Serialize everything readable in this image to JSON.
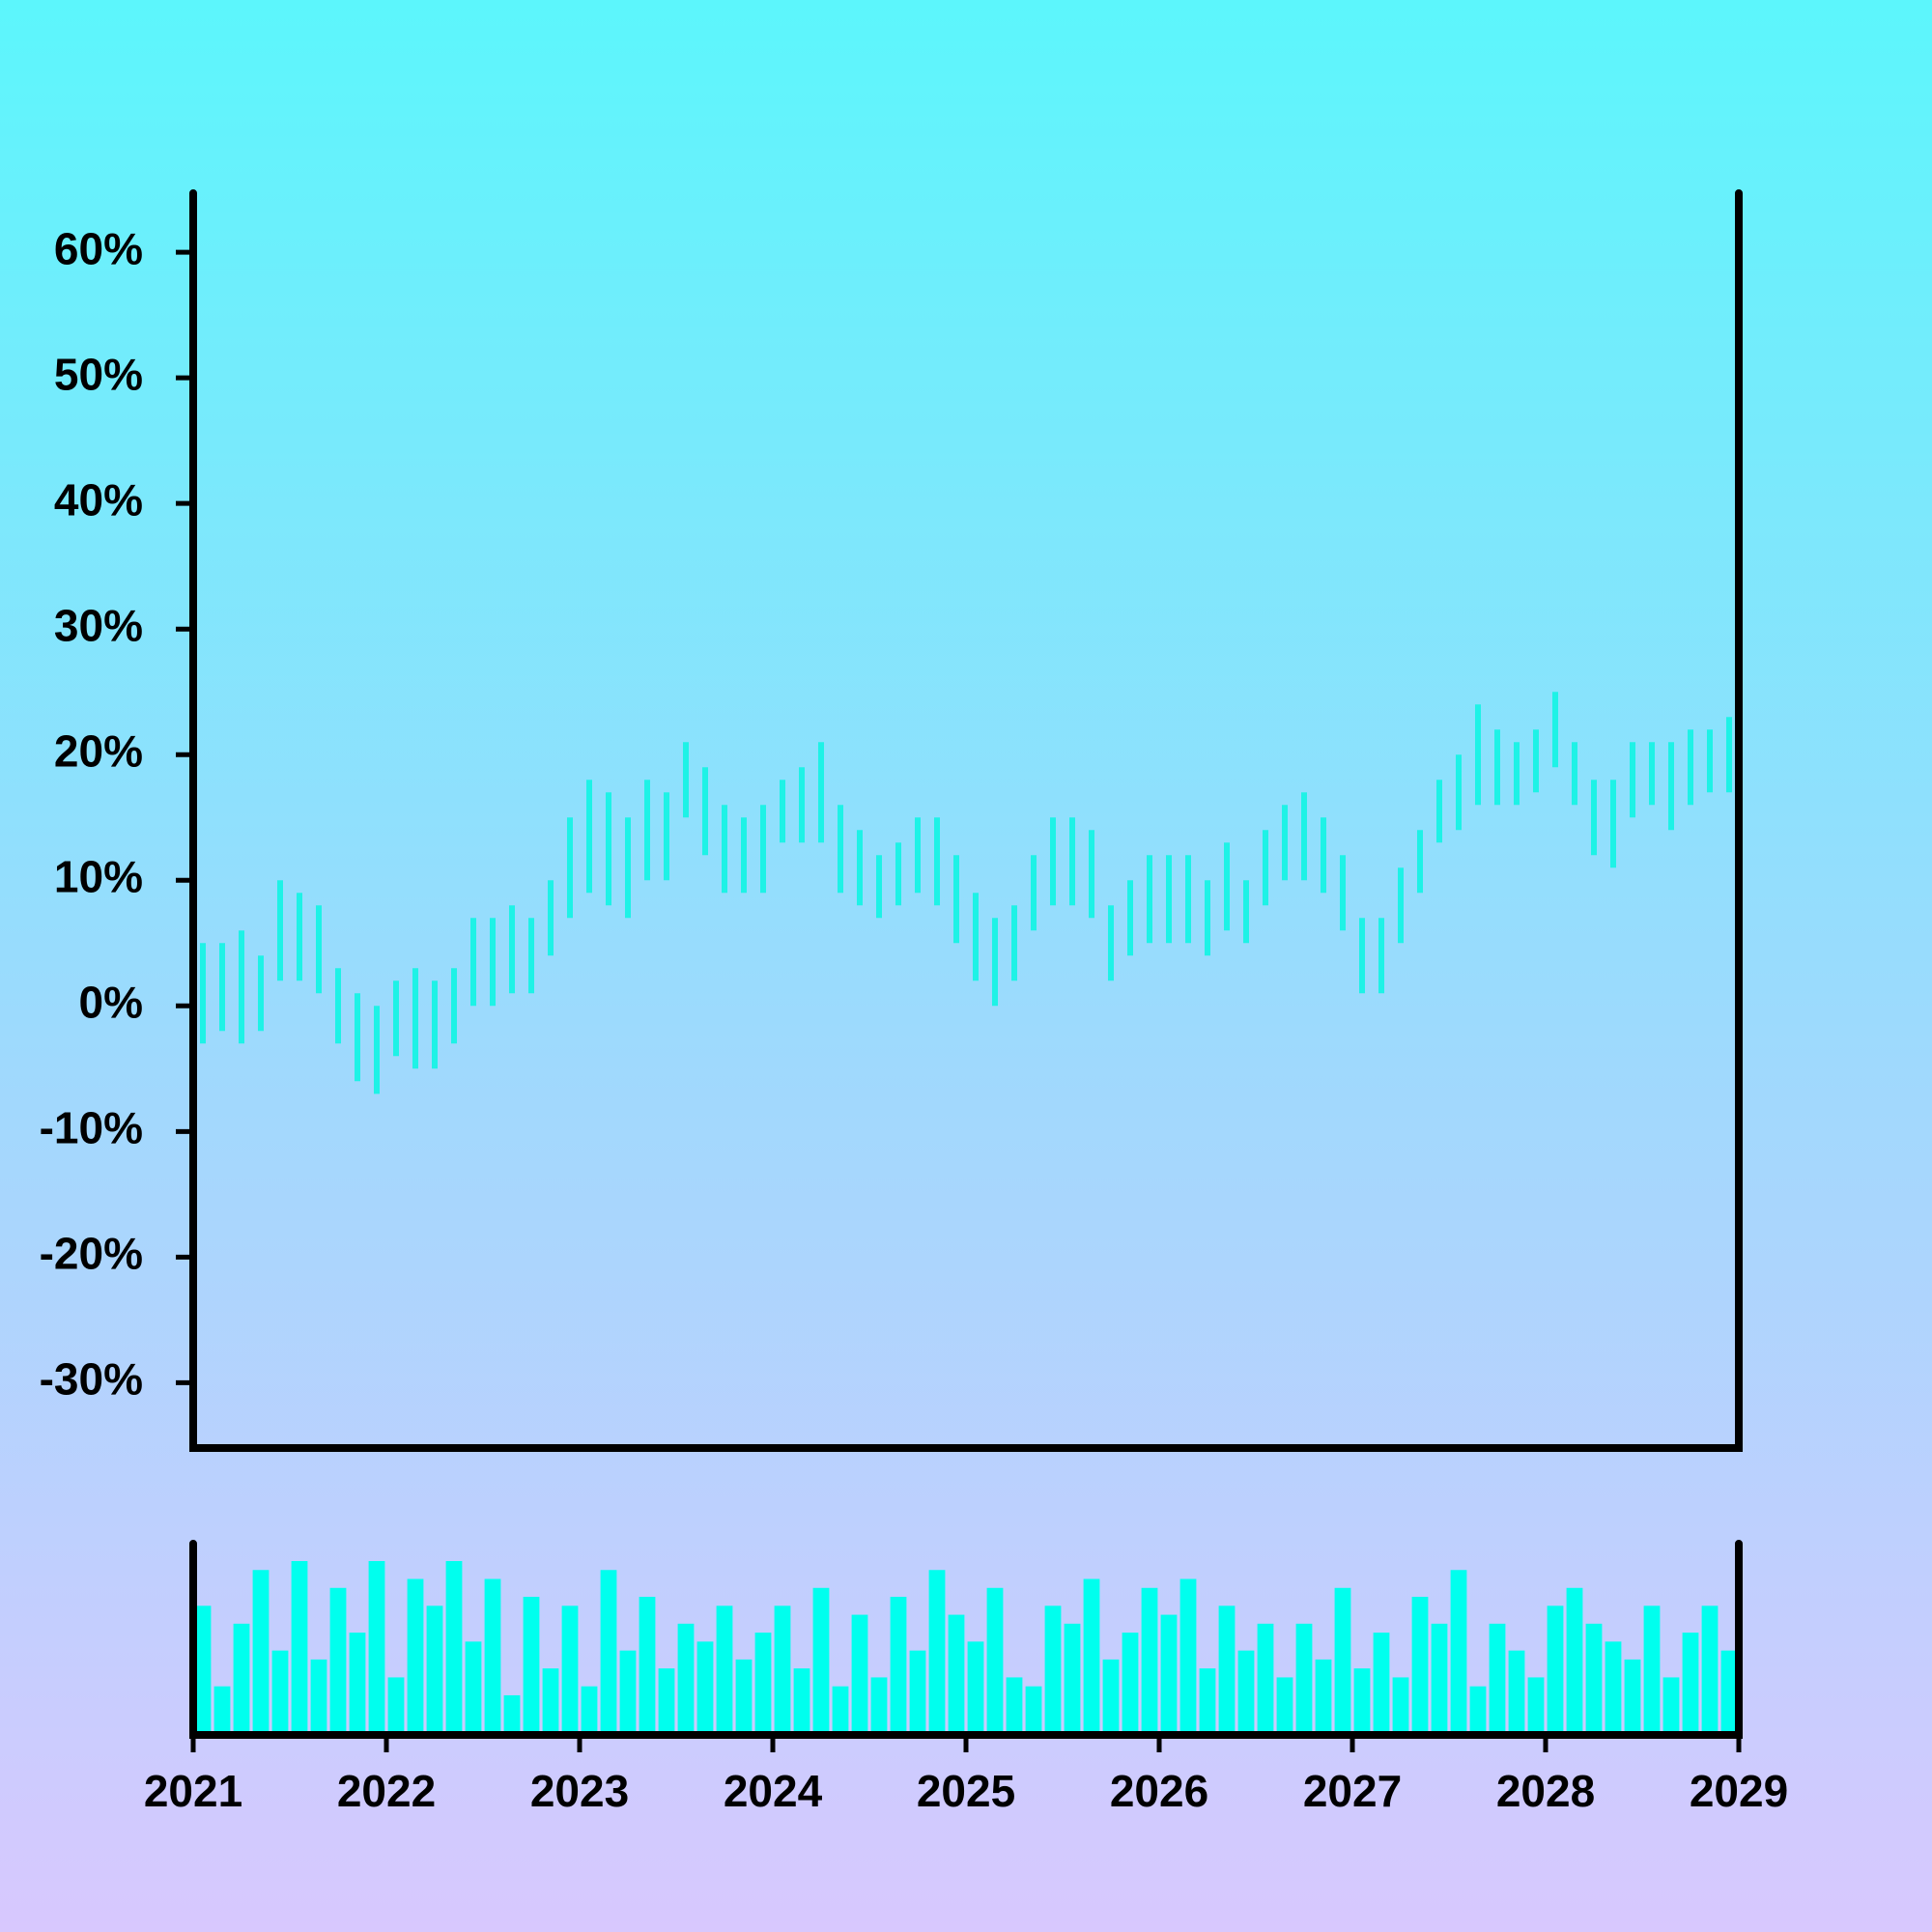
{
  "chart_data": {
    "type": "range",
    "x": [
      2021.05,
      2021.15,
      2021.25,
      2021.35,
      2021.45,
      2021.55,
      2021.65,
      2021.75,
      2021.85,
      2021.95,
      2022.05,
      2022.15,
      2022.25,
      2022.35,
      2022.45,
      2022.55,
      2022.65,
      2022.75,
      2022.85,
      2022.95,
      2023.05,
      2023.15,
      2023.25,
      2023.35,
      2023.45,
      2023.55,
      2023.65,
      2023.75,
      2023.85,
      2023.95,
      2024.05,
      2024.15,
      2024.25,
      2024.35,
      2024.45,
      2024.55,
      2024.65,
      2024.75,
      2024.85,
      2024.95,
      2025.05,
      2025.15,
      2025.25,
      2025.35,
      2025.45,
      2025.55,
      2025.65,
      2025.75,
      2025.85,
      2025.95,
      2026.05,
      2026.15,
      2026.25,
      2026.35,
      2026.45,
      2026.55,
      2026.65,
      2026.75,
      2026.85,
      2026.95,
      2027.05,
      2027.15,
      2027.25,
      2027.35,
      2027.45,
      2027.55,
      2027.65,
      2027.75,
      2027.85,
      2027.95,
      2028.05,
      2028.15,
      2028.25,
      2028.35,
      2028.45,
      2028.55,
      2028.65,
      2028.75,
      2028.85,
      2028.95
    ],
    "low": [
      -3,
      -2,
      -3,
      -2,
      2,
      2,
      1,
      -3,
      -6,
      -7,
      -4,
      -5,
      -5,
      -3,
      0,
      0,
      1,
      1,
      4,
      7,
      9,
      8,
      7,
      10,
      10,
      15,
      12,
      9,
      9,
      9,
      13,
      13,
      13,
      9,
      8,
      7,
      8,
      9,
      8,
      5,
      2,
      0,
      2,
      6,
      8,
      8,
      7,
      2,
      4,
      5,
      5,
      5,
      4,
      6,
      5,
      8,
      10,
      10,
      9,
      6,
      1,
      1,
      5,
      9,
      13,
      14,
      16,
      16,
      16,
      17,
      19,
      16,
      12,
      11,
      15,
      16,
      14,
      16,
      17,
      17
    ],
    "high": [
      5,
      5,
      6,
      4,
      10,
      9,
      8,
      3,
      1,
      0,
      2,
      3,
      2,
      3,
      7,
      7,
      8,
      7,
      10,
      15,
      18,
      17,
      15,
      18,
      17,
      21,
      19,
      16,
      15,
      16,
      18,
      19,
      21,
      16,
      14,
      12,
      13,
      15,
      15,
      12,
      9,
      7,
      8,
      12,
      15,
      15,
      14,
      8,
      10,
      12,
      12,
      12,
      10,
      13,
      10,
      14,
      16,
      17,
      15,
      12,
      7,
      7,
      11,
      14,
      18,
      20,
      24,
      22,
      21,
      22,
      25,
      21,
      18,
      18,
      21,
      21,
      21,
      22,
      22,
      23
    ],
    "volume": [
      70,
      25,
      60,
      90,
      45,
      95,
      40,
      80,
      55,
      95,
      30,
      85,
      70,
      95,
      50,
      85,
      20,
      75,
      35,
      70,
      25,
      90,
      45,
      75,
      35,
      60,
      50,
      70,
      40,
      55,
      70,
      35,
      80,
      25,
      65,
      30,
      75,
      45,
      90,
      65,
      50,
      80,
      30,
      25,
      70,
      60,
      85,
      40,
      55,
      80,
      65,
      85,
      35,
      70,
      45,
      60,
      30,
      60,
      40,
      80,
      35,
      55,
      30,
      75,
      60,
      90,
      25,
      60,
      45,
      30,
      70,
      80,
      60,
      50,
      40,
      70,
      30,
      55,
      70,
      45
    ],
    "color": "#1ef2e6",
    "volume_color": "#00ffee",
    "xlim": [
      2021,
      2029
    ],
    "xticks": [
      2021,
      2022,
      2023,
      2024,
      2025,
      2026,
      2027,
      2028,
      2029
    ],
    "ylim": [
      -35.2,
      64.7
    ],
    "yticks": [
      {
        "value": -30,
        "label": "-30%"
      },
      {
        "value": -20,
        "label": "-20%"
      },
      {
        "value": -10,
        "label": "-10%"
      },
      {
        "value": 0,
        "label": "0%"
      },
      {
        "value": 10,
        "label": "10%"
      },
      {
        "value": 20,
        "label": "20%"
      },
      {
        "value": 30,
        "label": "30%"
      },
      {
        "value": 40,
        "label": "40%"
      },
      {
        "value": 50,
        "label": "50%"
      },
      {
        "value": 60,
        "label": "60%"
      }
    ]
  }
}
